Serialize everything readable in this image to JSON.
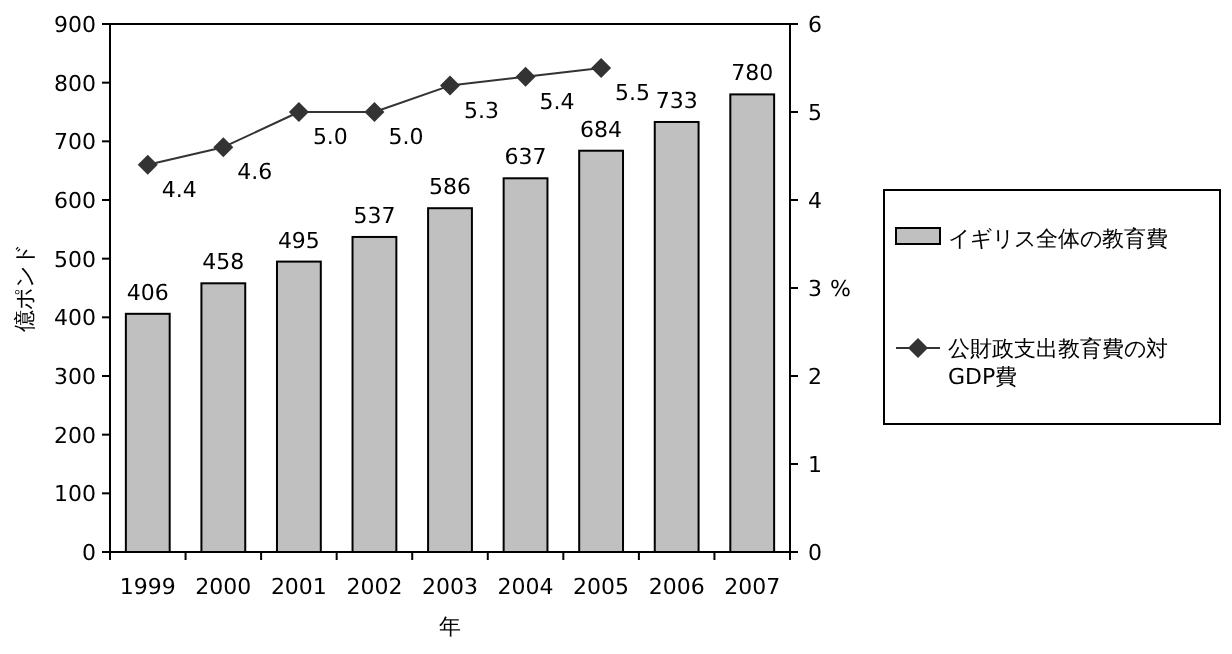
{
  "chart_data": {
    "type": "bar",
    "xlabel": "年",
    "ylabel": "億ポンド",
    "y2label": "%",
    "categories": [
      "1999",
      "2000",
      "2001",
      "2002",
      "2003",
      "2004",
      "2005",
      "2006",
      "2007"
    ],
    "series": [
      {
        "name": "イギリス全体の教育費",
        "color": "#c0c0c0",
        "values": [
          406,
          458,
          495,
          537,
          586,
          637,
          684,
          733,
          780
        ]
      },
      {
        "name": "公財政支出教育費の対GDP費",
        "type": "line",
        "axis": "y2",
        "color": "#333333",
        "marker": "diamond",
        "values": [
          4.4,
          4.6,
          5.0,
          5.0,
          5.3,
          5.4,
          5.5,
          null,
          null
        ],
        "value_labels": [
          "4.4",
          "4.6",
          "5.0",
          "5.0",
          "5.3",
          "5.4",
          "5.5",
          null,
          null
        ]
      }
    ],
    "ylim": [
      0,
      900
    ],
    "yticks": [
      0,
      100,
      200,
      300,
      400,
      500,
      600,
      700,
      800,
      900
    ],
    "y2lim": [
      0,
      6
    ],
    "y2ticks": [
      0,
      1,
      2,
      3,
      4,
      5,
      6
    ],
    "data_labels": true,
    "grid": false,
    "legend": "right"
  }
}
